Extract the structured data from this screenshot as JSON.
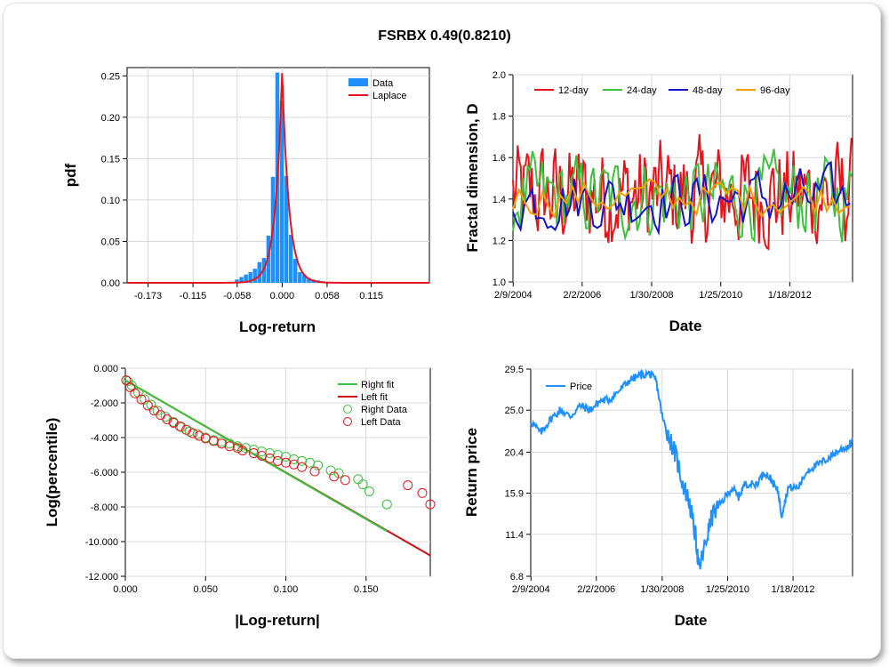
{
  "title": "FSRBX 0.49(0.8210)",
  "chart_data": [
    {
      "type": "bar",
      "name": "pdf-histogram",
      "xlabel": "Log-return",
      "ylabel": "pdf",
      "xlim": [
        -0.2,
        0.19
      ],
      "ylim": [
        0.0,
        0.26
      ],
      "xticks": [
        -0.173,
        -0.115,
        -0.058,
        0.0,
        0.058,
        0.115
      ],
      "xtick_labels": [
        "-0.173",
        "-0.115",
        "-0.058",
        "0.000",
        "0.058",
        "0.115"
      ],
      "yticks": [
        0.0,
        0.05,
        0.1,
        0.15,
        0.2,
        0.25
      ],
      "ytick_labels": [
        "0.00",
        "0.05",
        "0.10",
        "0.15",
        "0.20",
        "0.25"
      ],
      "bin_width": 0.0058,
      "bins_center": [
        -0.058,
        -0.0522,
        -0.0464,
        -0.0406,
        -0.0348,
        -0.029,
        -0.0232,
        -0.0174,
        -0.0116,
        -0.0058,
        0.0,
        0.0058,
        0.0116,
        0.0174,
        0.0232,
        0.029,
        0.0348,
        0.0406,
        0.0464,
        0.0522,
        0.058
      ],
      "values": [
        0.004,
        0.007,
        0.01,
        0.013,
        0.017,
        0.025,
        0.03,
        0.057,
        0.128,
        0.254,
        0.22,
        0.129,
        0.058,
        0.029,
        0.013,
        0.01,
        0.006,
        0.004,
        0.003,
        0.002,
        0.001
      ],
      "series": [
        {
          "name": "Data",
          "color": "#1e90ff"
        },
        {
          "name": "Laplace",
          "color": "#e8141c",
          "peak": 0.257,
          "scale": 0.0087
        }
      ],
      "legend": "top-right"
    },
    {
      "type": "line",
      "name": "fractal-dimension",
      "xlabel": "Date",
      "ylabel": "Fractal dimension, D",
      "ylim": [
        1.0,
        2.0
      ],
      "xlim_years": [
        2004.1,
        2013.85
      ],
      "x_tick_labels": [
        "2/9/2004",
        "2/2/2006",
        "1/30/2008",
        "1/25/2010",
        "1/18/2012"
      ],
      "y_tick_labels": [
        "1.0",
        "1.2",
        "1.4",
        "1.6",
        "1.8",
        "2.0"
      ],
      "series": [
        {
          "name": "12-day",
          "color": "#e8141c"
        },
        {
          "name": "24-day",
          "color": "#3dc23d"
        },
        {
          "name": "48-day",
          "color": "#1414c8"
        },
        {
          "name": "96-day",
          "color": "#f5a000"
        }
      ],
      "legend": "top-left"
    },
    {
      "type": "scatter",
      "name": "tail-distribution",
      "xlabel": "|Log-return|",
      "ylabel": "Log(percentile)",
      "xlim": [
        0.0,
        0.19
      ],
      "ylim": [
        -12.0,
        0.0
      ],
      "x_tick_labels": [
        "0.000",
        "0.050",
        "0.100",
        "0.150"
      ],
      "y_tick_labels": [
        "0.000",
        "-2.000",
        "-4.000",
        "-6.000",
        "-8.000",
        "-10.000",
        "-12.000"
      ],
      "series": [
        {
          "name": "Right fit",
          "color": "#3dc23d",
          "x": [
            0.0,
            0.163
          ],
          "y": [
            -0.7,
            -9.4
          ]
        },
        {
          "name": "Left fit",
          "color": "#d01010",
          "x": [
            0.0,
            0.19
          ],
          "y": [
            -0.7,
            -10.8
          ]
        },
        {
          "name": "Right Data",
          "color": "#3dc23d",
          "points": [
            [
              0.0015,
              -0.75
            ],
            [
              0.004,
              -1.0
            ],
            [
              0.008,
              -1.4
            ],
            [
              0.012,
              -1.8
            ],
            [
              0.016,
              -2.1
            ],
            [
              0.02,
              -2.45
            ],
            [
              0.025,
              -2.8
            ],
            [
              0.03,
              -3.1
            ],
            [
              0.035,
              -3.4
            ],
            [
              0.04,
              -3.65
            ],
            [
              0.045,
              -3.8
            ],
            [
              0.05,
              -4.0
            ],
            [
              0.055,
              -4.15
            ],
            [
              0.06,
              -4.25
            ],
            [
              0.065,
              -4.35
            ],
            [
              0.07,
              -4.5
            ],
            [
              0.075,
              -4.6
            ],
            [
              0.08,
              -4.7
            ],
            [
              0.085,
              -4.8
            ],
            [
              0.09,
              -4.9
            ],
            [
              0.095,
              -5.0
            ],
            [
              0.1,
              -5.1
            ],
            [
              0.105,
              -5.25
            ],
            [
              0.11,
              -5.35
            ],
            [
              0.115,
              -5.45
            ],
            [
              0.12,
              -5.6
            ],
            [
              0.128,
              -5.9
            ],
            [
              0.133,
              -6.05
            ],
            [
              0.145,
              -6.4
            ],
            [
              0.148,
              -6.7
            ],
            [
              0.152,
              -7.1
            ],
            [
              0.163,
              -7.85
            ]
          ]
        },
        {
          "name": "Left Data",
          "color": "#e8141c",
          "points": [
            [
              0.0005,
              -0.7
            ],
            [
              0.003,
              -1.1
            ],
            [
              0.006,
              -1.45
            ],
            [
              0.01,
              -1.8
            ],
            [
              0.014,
              -2.15
            ],
            [
              0.018,
              -2.45
            ],
            [
              0.022,
              -2.7
            ],
            [
              0.026,
              -2.95
            ],
            [
              0.03,
              -3.15
            ],
            [
              0.034,
              -3.35
            ],
            [
              0.038,
              -3.55
            ],
            [
              0.042,
              -3.75
            ],
            [
              0.046,
              -3.9
            ],
            [
              0.05,
              -4.05
            ],
            [
              0.055,
              -4.2
            ],
            [
              0.06,
              -4.35
            ],
            [
              0.065,
              -4.5
            ],
            [
              0.07,
              -4.6
            ],
            [
              0.073,
              -4.75
            ],
            [
              0.08,
              -4.9
            ],
            [
              0.085,
              -5.05
            ],
            [
              0.09,
              -5.2
            ],
            [
              0.095,
              -5.35
            ],
            [
              0.1,
              -5.45
            ],
            [
              0.105,
              -5.55
            ],
            [
              0.11,
              -5.7
            ],
            [
              0.118,
              -5.95
            ],
            [
              0.13,
              -6.25
            ],
            [
              0.137,
              -6.45
            ],
            [
              0.176,
              -6.75
            ],
            [
              0.185,
              -7.2
            ],
            [
              0.19,
              -7.85
            ]
          ]
        }
      ],
      "legend": "top-right"
    },
    {
      "type": "line",
      "name": "return-price",
      "xlabel": "Date",
      "ylabel": "Return price",
      "ylim": [
        6.8,
        29.5
      ],
      "xlim_years": [
        2004.1,
        2013.85
      ],
      "x_tick_labels": [
        "2/9/2004",
        "2/2/2006",
        "1/30/2008",
        "1/25/2010",
        "1/18/2012"
      ],
      "y_tick_labels": [
        "6.8",
        "11.4",
        "15.9",
        "20.4",
        "25.0",
        "29.5"
      ],
      "series": [
        {
          "name": "Price",
          "color": "#1e90ff",
          "x": [
            2004.1,
            2004.4,
            2004.7,
            2005.0,
            2005.3,
            2005.6,
            2005.9,
            2006.2,
            2006.5,
            2006.8,
            2007.1,
            2007.4,
            2007.7,
            2007.9,
            2008.1,
            2008.3,
            2008.5,
            2008.7,
            2008.9,
            2009.1,
            2009.2,
            2009.4,
            2009.6,
            2009.9,
            2010.2,
            2010.4,
            2010.6,
            2010.9,
            2011.2,
            2011.4,
            2011.6,
            2011.7,
            2011.9,
            2012.2,
            2012.5,
            2012.8,
            2013.1,
            2013.4,
            2013.7,
            2013.85
          ],
          "y": [
            23.8,
            22.5,
            24.0,
            25.0,
            24.3,
            25.5,
            25.0,
            26.0,
            26.2,
            27.2,
            28.3,
            28.8,
            29.0,
            28.2,
            24.0,
            22.0,
            20.0,
            17.0,
            15.0,
            11.0,
            7.5,
            10.5,
            13.5,
            15.0,
            16.5,
            15.5,
            17.0,
            16.8,
            18.2,
            17.3,
            16.0,
            13.5,
            16.5,
            16.5,
            18.5,
            19.0,
            19.7,
            20.5,
            21.0,
            21.6
          ]
        }
      ],
      "legend": "top-left"
    }
  ]
}
